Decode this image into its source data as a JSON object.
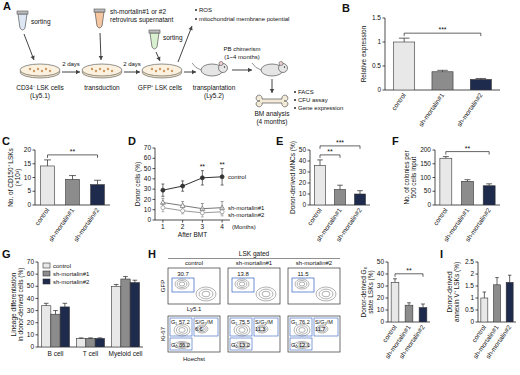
{
  "schematic": {
    "panel": "A",
    "sorting": "sorting",
    "cells_1": [
      "CD34⁻ LSK cells",
      "(Ly5.1)"
    ],
    "virus": [
      "sh-mortalin#1 or #2",
      "retrovirus supernatant"
    ],
    "interval": "2 days",
    "transduction": "transduction",
    "cells_2": "GFP⁺ LSK cells",
    "assays_1": [
      "ROS",
      "mitochondrial membrane potential"
    ],
    "transplant": [
      "transplantation",
      "(Ly5.2)"
    ],
    "pb": [
      "PB chimerism",
      "(1~4 months)"
    ],
    "bm": [
      "BM analysis",
      "(4 months)"
    ],
    "assays_2": [
      "FACS",
      "CFU assay",
      "Gene expression"
    ]
  },
  "chart_data": [
    {
      "type": "bar",
      "panel": "B",
      "y_label": [
        "Relative expression"
      ],
      "categories": [
        "control",
        "sh-mortalin#1",
        "sh-mortalin#2"
      ],
      "values": [
        1.0,
        0.38,
        0.22
      ],
      "errors": [
        0.08,
        0.03,
        0.02
      ],
      "colors": [
        "#e8e8e8",
        "#8c8c8c",
        "#1e2b4d"
      ],
      "ylim": [
        0,
        1.5
      ],
      "yticks": [
        0,
        0.5,
        1,
        1.5
      ],
      "annotations": [
        {
          "text": "***",
          "from": 0,
          "to": 2
        }
      ]
    },
    {
      "type": "bar",
      "panel": "C",
      "y_label": [
        "No. of CD150⁺ LSKs",
        "(×10³)"
      ],
      "categories": [
        "control",
        "sh-mortalin#1",
        "sh-mortalin#2"
      ],
      "values": [
        14.2,
        9.3,
        7.4
      ],
      "errors": [
        2.2,
        1.4,
        1.6
      ],
      "colors": [
        "#e8e8e8",
        "#8c8c8c",
        "#1e2b4d"
      ],
      "ylim": [
        0,
        20
      ],
      "yticks": [
        0,
        5,
        10,
        15,
        20
      ],
      "annotations": [
        {
          "text": "**",
          "from": 0,
          "to": 2
        }
      ]
    },
    {
      "type": "line",
      "panel": "D",
      "y_label": [
        "Donor cells (%)"
      ],
      "x_label": "After BMT",
      "x_unit": "(Months)",
      "x": [
        1,
        2,
        3,
        4
      ],
      "xlim": [
        0.6,
        4.4
      ],
      "xticks": [
        1,
        2,
        3,
        4
      ],
      "ylim": [
        0,
        70
      ],
      "yticks": [
        0,
        10,
        20,
        30,
        40,
        50,
        60,
        70
      ],
      "series": [
        {
          "name": "control",
          "color": "#333333",
          "marker": "circle",
          "line_style": "solid",
          "values": [
            29,
            33,
            41,
            42
          ],
          "errors": [
            6,
            5,
            7,
            8
          ]
        },
        {
          "name": "sh-mortalin#1",
          "color": "#777777",
          "marker": "open-triangle",
          "line_style": "solid",
          "values": [
            17,
            14,
            11,
            12
          ],
          "errors": [
            4,
            4,
            5,
            6
          ]
        },
        {
          "name": "sh-mortalin#2",
          "color": "#999999",
          "marker": "open-circle",
          "line_style": "solid",
          "values": [
            12,
            9,
            7,
            8
          ],
          "errors": [
            4,
            3,
            4,
            4
          ]
        }
      ],
      "annotations": [
        {
          "text": "**",
          "x": 3
        },
        {
          "text": "**",
          "x": 4
        }
      ]
    },
    {
      "type": "bar",
      "panel": "E",
      "y_label": [
        "Donor-derived MNCs (%)"
      ],
      "categories": [
        "control",
        "sh-mortalin#1",
        "sh-mortalin#2"
      ],
      "values": [
        36,
        14,
        10
      ],
      "errors": [
        5,
        4,
        3
      ],
      "colors": [
        "#e8e8e8",
        "#8c8c8c",
        "#1e2b4d"
      ],
      "ylim": [
        0,
        50
      ],
      "yticks": [
        0,
        10,
        20,
        30,
        40,
        50
      ],
      "annotations": [
        {
          "text": "**",
          "from": 0,
          "to": 1
        },
        {
          "text": "***",
          "from": 0,
          "to": 2
        }
      ]
    },
    {
      "type": "bar",
      "panel": "F",
      "y_label": [
        "No. of colonies per",
        "500 cells input"
      ],
      "categories": [
        "control",
        "sh-mortalin#1",
        "sh-mortalin#2"
      ],
      "values": [
        170,
        86,
        70
      ],
      "errors": [
        6,
        6,
        7
      ],
      "colors": [
        "#e8e8e8",
        "#8c8c8c",
        "#1e2b4d"
      ],
      "ylim": [
        0,
        200
      ],
      "yticks": [
        0,
        50,
        100,
        150,
        200
      ],
      "annotations": [
        {
          "text": "**",
          "from": 0,
          "to": 2
        }
      ]
    },
    {
      "type": "bar",
      "panel": "G",
      "y_label": [
        "Lineage differentiation",
        "in donor-derived cells (%)"
      ],
      "categories": [
        "B cell",
        "T cell",
        "Myeloid cell"
      ],
      "legend": "upper left",
      "ylim": [
        0,
        70
      ],
      "yticks": [
        0,
        10,
        20,
        30,
        40,
        50,
        60,
        70
      ],
      "series": [
        {
          "name": "control",
          "color": "#e8e8e8",
          "values": [
            34,
            7,
            50
          ],
          "errors": [
            2,
            0.5,
            1.5
          ]
        },
        {
          "name": "sh-mortalin#1",
          "color": "#8c8c8c",
          "values": [
            27,
            7,
            56
          ],
          "errors": [
            3,
            0.5,
            2
          ]
        },
        {
          "name": "sh-mortalin#2",
          "color": "#1e2b4d",
          "values": [
            33,
            7,
            53
          ],
          "errors": [
            3,
            0.5,
            2
          ]
        }
      ]
    },
    {
      "type": "bar",
      "y_label": [
        "Donor-derived G₀",
        "state LSKs (%)"
      ],
      "categories": [
        "control",
        "sh-mortalin#1",
        "sh-mortalin#2"
      ],
      "values": [
        33,
        14,
        12
      ],
      "errors": [
        3,
        2,
        3
      ],
      "colors": [
        "#e8e8e8",
        "#8c8c8c",
        "#1e2b4d"
      ],
      "ylim": [
        0,
        50
      ],
      "yticks": [
        0,
        10,
        20,
        30,
        40,
        50
      ],
      "annotations": [
        {
          "text": "**",
          "from": 0,
          "to": 2
        }
      ]
    },
    {
      "type": "bar",
      "panel": "I",
      "y_label": [
        "Donor-derived",
        "annexin V⁺ LSKs (%)"
      ],
      "categories": [
        "control",
        "sh-mortalin#1",
        "sh-mortalin#2"
      ],
      "values": [
        1.0,
        1.55,
        1.65
      ],
      "errors": [
        0.25,
        0.3,
        0.3
      ],
      "colors": [
        "#e8e8e8",
        "#8c8c8c",
        "#1e2b4d"
      ],
      "ylim": [
        0,
        2.5
      ],
      "yticks": [
        0,
        0.5,
        1,
        1.5,
        2,
        2.5
      ]
    }
  ],
  "flow": {
    "panel": "H",
    "gate": "LSK gated",
    "columns": [
      "control",
      "sh-mortalin#1",
      "sh-mortalin#2"
    ],
    "upper": {
      "x_label": "Ly5.1",
      "y_label": "GFP",
      "values": [
        30.7,
        13.8,
        11.5
      ]
    },
    "lower": {
      "x_label": "Hoechst",
      "y_label": "Ki-67",
      "phases": [
        "G₁",
        "S/G₂/M",
        "G₀"
      ],
      "values": [
        [
          57.2,
          6.6,
          36.2
        ],
        [
          75.5,
          11.3,
          13.2
        ],
        [
          76.2,
          11.7,
          12.1
        ]
      ]
    }
  }
}
